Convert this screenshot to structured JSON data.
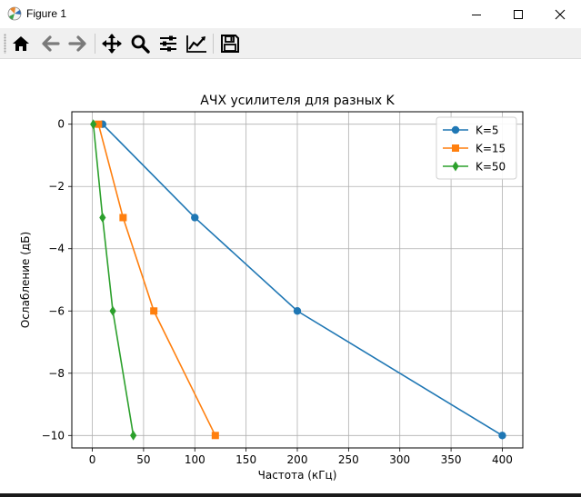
{
  "window": {
    "title": "Figure 1",
    "minimize_icon": "minimize-icon",
    "maximize_icon": "maximize-icon",
    "close_icon": "close-icon"
  },
  "toolbar": {
    "buttons": [
      {
        "icon": "home-icon"
      },
      {
        "icon": "back-arrow-icon"
      },
      {
        "icon": "forward-arrow-icon"
      },
      {
        "icon": "pan-icon"
      },
      {
        "icon": "zoom-icon"
      },
      {
        "icon": "subplots-config-icon"
      },
      {
        "icon": "edit-axes-icon"
      },
      {
        "icon": "save-icon"
      }
    ]
  },
  "chart_data": {
    "type": "line",
    "title": "АЧХ усилителя для разных K",
    "xlabel": "Частота (кГц)",
    "ylabel": "Ослабление (дБ)",
    "xlim": [
      -20,
      420
    ],
    "ylim": [
      -10.4,
      0.4
    ],
    "xticks": [
      0,
      50,
      100,
      150,
      200,
      250,
      300,
      350,
      400
    ],
    "yticks": [
      0,
      -2,
      -4,
      -6,
      -8,
      -10
    ],
    "xtick_labels": [
      "0",
      "50",
      "100",
      "150",
      "200",
      "250",
      "300",
      "350",
      "400"
    ],
    "ytick_labels": [
      "0",
      "−2",
      "−4",
      "−6",
      "−8",
      "−10"
    ],
    "grid": true,
    "legend_position": "top-right",
    "series": [
      {
        "name": "K=5",
        "color": "#1f77b4",
        "marker": "circle",
        "x": [
          10,
          100,
          200,
          400
        ],
        "y": [
          0,
          -3,
          -6,
          -10
        ]
      },
      {
        "name": "K=15",
        "color": "#ff7f0e",
        "marker": "square",
        "x": [
          6,
          30,
          60,
          120
        ],
        "y": [
          0,
          -3,
          -6,
          -10
        ]
      },
      {
        "name": "K=50",
        "color": "#2ca02c",
        "marker": "diamond",
        "x": [
          1,
          10,
          20,
          40
        ],
        "y": [
          0,
          -3,
          -6,
          -10
        ]
      }
    ]
  }
}
